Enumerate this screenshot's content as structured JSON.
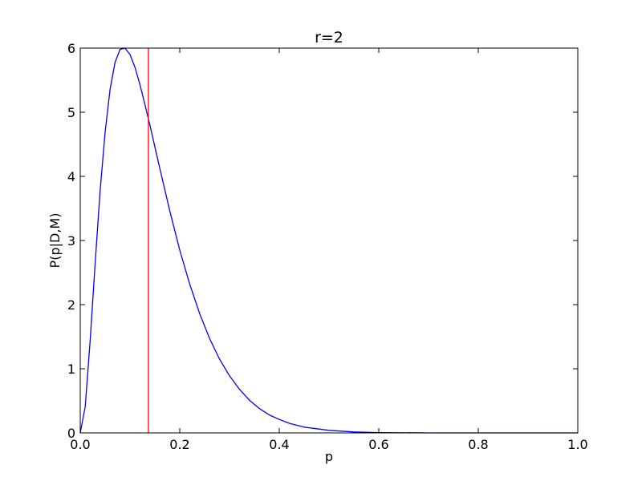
{
  "chart_data": {
    "type": "line",
    "title": "r=2",
    "xlabel": "p",
    "ylabel": "P(p|D,M)",
    "xlim": [
      0.0,
      1.0
    ],
    "ylim": [
      0,
      6
    ],
    "xticks": [
      "0.0",
      "0.2",
      "0.4",
      "0.6",
      "0.8",
      "1.0"
    ],
    "yticks": [
      "0",
      "1",
      "2",
      "3",
      "4",
      "5",
      "6"
    ],
    "grid": false,
    "series": [
      {
        "color": "#0000ff",
        "x": [
          0.0,
          0.01,
          0.02,
          0.03,
          0.04,
          0.05,
          0.06,
          0.07,
          0.08,
          0.09,
          0.1,
          0.11,
          0.12,
          0.13,
          0.14,
          0.15,
          0.16,
          0.18,
          0.2,
          0.22,
          0.24,
          0.26,
          0.28,
          0.3,
          0.32,
          0.34,
          0.36,
          0.38,
          0.4,
          0.42,
          0.45,
          0.5,
          0.55,
          0.6,
          0.7,
          0.8,
          0.9,
          1.0
        ],
        "y": [
          0.0,
          0.41,
          1.45,
          2.65,
          3.78,
          4.69,
          5.36,
          5.78,
          5.98,
          6.0,
          5.9,
          5.7,
          5.43,
          5.12,
          4.8,
          4.46,
          4.12,
          3.46,
          2.85,
          2.32,
          1.86,
          1.47,
          1.15,
          0.89,
          0.68,
          0.51,
          0.38,
          0.28,
          0.21,
          0.15,
          0.09,
          0.04,
          0.015,
          0.005,
          0.0,
          0.0,
          0.0,
          0.0
        ]
      }
    ],
    "vline": {
      "x": 0.137,
      "color": "#ff0000"
    }
  }
}
